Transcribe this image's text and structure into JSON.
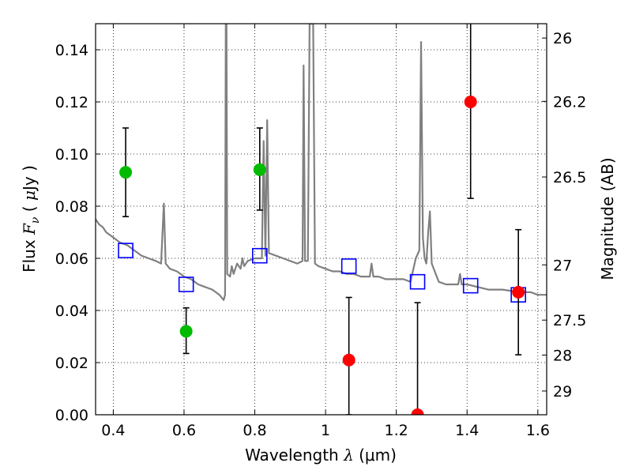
{
  "chart_data": {
    "type": "scatter",
    "xlabel": {
      "pre": "Wavelength  ",
      "sym": "λ",
      "post": " (μm)"
    },
    "ylabel": {
      "pre": "Flux  ",
      "sym": "F",
      "sub": "ν",
      "mid": "  ( ",
      "unit": "μ",
      "post": "Jy )"
    },
    "ylabel_right": "Magnitude (AB)",
    "xlim": [
      0.35,
      1.625
    ],
    "ylim": [
      0,
      0.15
    ],
    "grid": true,
    "x_ticks": [
      0.4,
      0.6,
      0.8,
      1.0,
      1.2,
      1.4,
      1.6
    ],
    "x_tick_labels": [
      "0.4",
      "0.6",
      "0.8",
      "1",
      "1.2",
      "1.4",
      "1.6"
    ],
    "y_ticks": [
      0,
      0.02,
      0.04,
      0.06,
      0.08,
      0.1,
      0.12,
      0.14
    ],
    "y_tick_labels": [
      "0.00",
      "0.02",
      "0.04",
      "0.06",
      "0.08",
      "0.10",
      "0.12",
      "0.14"
    ],
    "mag_ticks": [
      {
        "label": "26",
        "flux": 0.1445
      },
      {
        "label": "26.2",
        "flux": 0.1202
      },
      {
        "label": "26.5",
        "flux": 0.0912
      },
      {
        "label": "27",
        "flux": 0.0575
      },
      {
        "label": "27.5",
        "flux": 0.0363
      },
      {
        "label": "28",
        "flux": 0.0229
      },
      {
        "label": "29",
        "flux": 0.0091
      }
    ],
    "colors": {
      "template": "#808080",
      "detected": "#00bb00",
      "upper_limit": "#ff0000",
      "model": "#0000ff",
      "errorbar": "#000000"
    },
    "detected_points": [
      {
        "x": 0.435,
        "y": 0.093,
        "lo": 0.076,
        "hi": 0.11
      },
      {
        "x": 0.606,
        "y": 0.032,
        "lo": 0.0235,
        "hi": 0.041
      },
      {
        "x": 0.814,
        "y": 0.094,
        "lo": 0.0785,
        "hi": 0.11
      }
    ],
    "upper_limit_points": [
      {
        "x": 1.066,
        "y": 0.021,
        "lo": 0.0,
        "hi": 0.045
      },
      {
        "x": 1.26,
        "y": 0.0,
        "lo": 0.0,
        "hi": 0.043
      },
      {
        "x": 1.41,
        "y": 0.12,
        "lo": 0.083,
        "hi": 0.152
      },
      {
        "x": 1.545,
        "y": 0.047,
        "lo": 0.023,
        "hi": 0.071
      }
    ],
    "model_points": [
      {
        "x": 0.435,
        "y": 0.063
      },
      {
        "x": 0.606,
        "y": 0.05
      },
      {
        "x": 0.814,
        "y": 0.061
      },
      {
        "x": 1.066,
        "y": 0.057
      },
      {
        "x": 1.26,
        "y": 0.051
      },
      {
        "x": 1.41,
        "y": 0.0495
      },
      {
        "x": 1.545,
        "y": 0.046
      }
    ],
    "template_spectrum": [
      [
        0.35,
        0.075
      ],
      [
        0.36,
        0.073
      ],
      [
        0.37,
        0.072
      ],
      [
        0.38,
        0.07
      ],
      [
        0.39,
        0.069
      ],
      [
        0.4,
        0.068
      ],
      [
        0.42,
        0.066
      ],
      [
        0.44,
        0.065
      ],
      [
        0.46,
        0.063
      ],
      [
        0.48,
        0.061
      ],
      [
        0.5,
        0.06
      ],
      [
        0.52,
        0.059
      ],
      [
        0.535,
        0.058
      ],
      [
        0.543,
        0.081
      ],
      [
        0.548,
        0.058
      ],
      [
        0.56,
        0.056
      ],
      [
        0.58,
        0.055
      ],
      [
        0.6,
        0.053
      ],
      [
        0.62,
        0.052
      ],
      [
        0.64,
        0.05
      ],
      [
        0.66,
        0.049
      ],
      [
        0.68,
        0.048
      ],
      [
        0.7,
        0.046
      ],
      [
        0.712,
        0.044
      ],
      [
        0.716,
        0.046
      ],
      [
        0.718,
        0.15
      ],
      [
        0.72,
        0.15
      ],
      [
        0.722,
        0.054
      ],
      [
        0.73,
        0.053
      ],
      [
        0.735,
        0.057
      ],
      [
        0.74,
        0.054
      ],
      [
        0.75,
        0.058
      ],
      [
        0.76,
        0.056
      ],
      [
        0.765,
        0.06
      ],
      [
        0.77,
        0.057
      ],
      [
        0.78,
        0.059
      ],
      [
        0.8,
        0.06
      ],
      [
        0.82,
        0.06
      ],
      [
        0.825,
        0.105
      ],
      [
        0.83,
        0.061
      ],
      [
        0.835,
        0.113
      ],
      [
        0.84,
        0.062
      ],
      [
        0.86,
        0.061
      ],
      [
        0.88,
        0.06
      ],
      [
        0.9,
        0.059
      ],
      [
        0.92,
        0.058
      ],
      [
        0.935,
        0.059
      ],
      [
        0.938,
        0.134
      ],
      [
        0.942,
        0.059
      ],
      [
        0.95,
        0.059
      ],
      [
        0.955,
        0.15
      ],
      [
        0.96,
        0.15
      ],
      [
        0.965,
        0.15
      ],
      [
        0.97,
        0.058
      ],
      [
        0.98,
        0.057
      ],
      [
        1.0,
        0.056
      ],
      [
        1.02,
        0.055
      ],
      [
        1.04,
        0.055
      ],
      [
        1.06,
        0.054
      ],
      [
        1.08,
        0.054
      ],
      [
        1.1,
        0.053
      ],
      [
        1.125,
        0.053
      ],
      [
        1.13,
        0.058
      ],
      [
        1.135,
        0.053
      ],
      [
        1.15,
        0.053
      ],
      [
        1.17,
        0.052
      ],
      [
        1.2,
        0.052
      ],
      [
        1.22,
        0.052
      ],
      [
        1.24,
        0.051
      ],
      [
        1.255,
        0.06
      ],
      [
        1.265,
        0.063
      ],
      [
        1.27,
        0.143
      ],
      [
        1.275,
        0.068
      ],
      [
        1.28,
        0.06
      ],
      [
        1.285,
        0.058
      ],
      [
        1.29,
        0.07
      ],
      [
        1.295,
        0.078
      ],
      [
        1.3,
        0.058
      ],
      [
        1.32,
        0.051
      ],
      [
        1.34,
        0.05
      ],
      [
        1.36,
        0.05
      ],
      [
        1.375,
        0.05
      ],
      [
        1.38,
        0.054
      ],
      [
        1.385,
        0.05
      ],
      [
        1.4,
        0.05
      ],
      [
        1.43,
        0.049
      ],
      [
        1.46,
        0.048
      ],
      [
        1.5,
        0.048
      ],
      [
        1.55,
        0.047
      ],
      [
        1.58,
        0.047
      ],
      [
        1.6,
        0.046
      ],
      [
        1.625,
        0.046
      ]
    ]
  }
}
